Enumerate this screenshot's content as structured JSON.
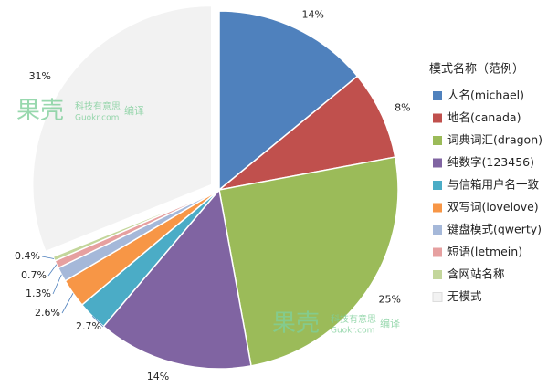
{
  "chart_data": {
    "type": "pie",
    "legend_title": "模式名称（范例）",
    "legend_position": "right",
    "categories": [
      "人名(michael)",
      "地名(canada)",
      "词典词汇(dragon)",
      "纯数字(123456)",
      "与信箱用户名一致",
      "双写词(lovelove)",
      "键盘模式(qwerty)",
      "短语(letmein)",
      "含网站名称",
      "无模式"
    ],
    "values": [
      14,
      8,
      25,
      14,
      2.7,
      2.6,
      1.3,
      0.7,
      0.4,
      31
    ],
    "value_labels": [
      "14%",
      "8%",
      "25%",
      "14%",
      "2.7%",
      "2.6%",
      "1.3%",
      "0.7%",
      "0.4%",
      "31%"
    ],
    "colors": [
      "#4f81bd",
      "#c0504d",
      "#9bbb59",
      "#8064a2",
      "#4bacc6",
      "#f79646",
      "#a5b8d9",
      "#e6a0a0",
      "#c3d69b",
      "#f2f2f2"
    ],
    "exploded": [
      9
    ]
  },
  "watermark": {
    "logo": "果壳",
    "slogan": "科技有意思",
    "site": "Guokr.com",
    "note": "编译"
  }
}
